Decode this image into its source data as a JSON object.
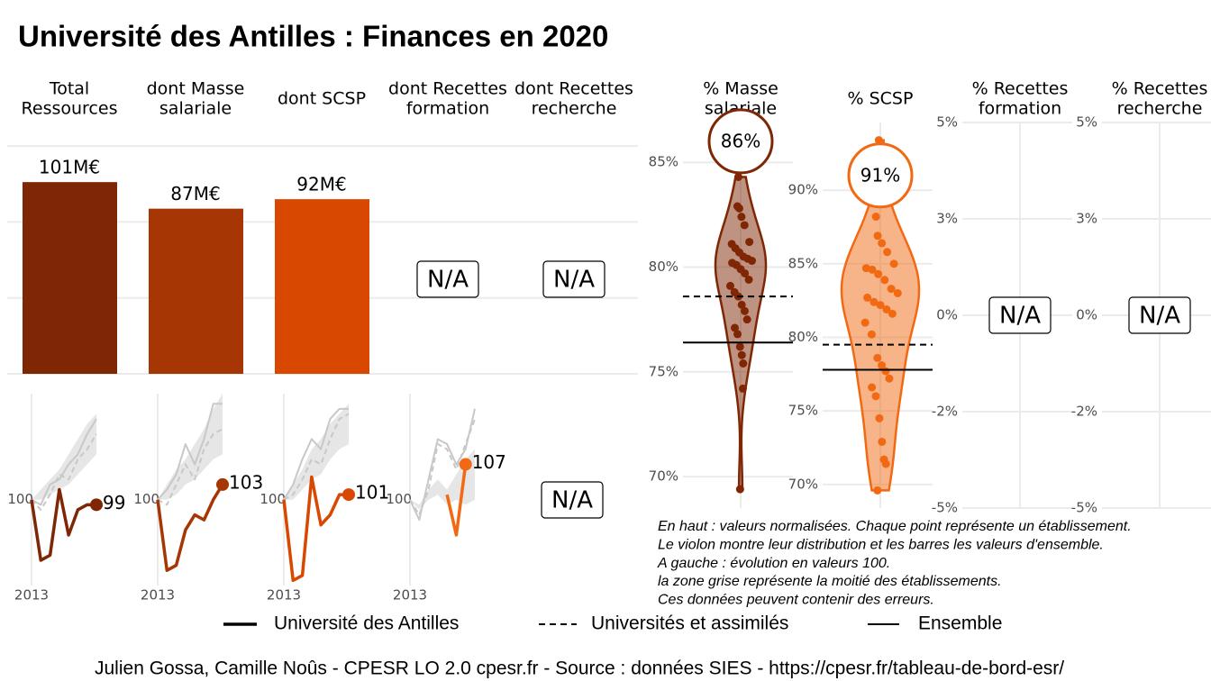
{
  "title": "Université des Antilles  :  Finances en 2020",
  "chart_data": [
    {
      "type": "bar",
      "categories": [
        [
          "Total",
          "Ressources"
        ],
        [
          "dont Masse",
          "salariale"
        ],
        [
          "dont SCSP"
        ],
        [
          "dont Recettes",
          "formation"
        ],
        [
          "dont Recettes",
          "recherche"
        ]
      ],
      "values": [
        101,
        87,
        92,
        null,
        null
      ],
      "value_labels": [
        "101M€",
        "87M€",
        "92M€",
        "N/A",
        "N/A"
      ],
      "colors": [
        "#7f2704",
        "#a63603",
        "#d94801",
        "#f16913",
        "#fd8d3c"
      ],
      "ylim": [
        0,
        121
      ],
      "yticks": [
        0,
        40,
        80,
        120
      ],
      "grid": true
    },
    {
      "type": "line",
      "x": [
        2013,
        2014,
        2015,
        2016,
        2017,
        2018,
        2019,
        2020
      ],
      "xlim": [
        2013,
        2020
      ],
      "xticks": [
        2013
      ],
      "ylim": [
        83,
        121
      ],
      "yticks": [
        100
      ],
      "band": {
        "low": [
          100,
          100,
          101,
          102,
          103,
          105,
          107,
          109
        ],
        "high": [
          100,
          102,
          104,
          106,
          109,
          112,
          115,
          117
        ],
        "color": "#e6e6e6"
      },
      "series": [
        {
          "color": "#c8c8c8",
          "width": 2,
          "dash": false,
          "values": [
            100,
            99,
            103,
            104,
            107,
            109,
            113,
            116
          ]
        },
        {
          "color": "#c8c8c8",
          "width": 2,
          "dash": true,
          "values": [
            100,
            98,
            101,
            105,
            104,
            108,
            110,
            113
          ]
        },
        {
          "color": "#7f2704",
          "width": 3.5,
          "dash": false,
          "marker": true,
          "values": [
            100,
            88,
            89,
            102,
            93,
            98,
            99,
            99
          ]
        }
      ]
    },
    {
      "type": "line",
      "x": [
        2013,
        2014,
        2015,
        2016,
        2017,
        2018,
        2019,
        2020
      ],
      "xlim": [
        2013,
        2020
      ],
      "xticks": [
        2013
      ],
      "ylim": [
        83,
        121
      ],
      "yticks": [
        100
      ],
      "band": {
        "low": [
          100,
          100,
          101,
          103,
          104,
          106,
          108,
          109
        ],
        "high": [
          100,
          103,
          106,
          108,
          111,
          114,
          118,
          121
        ],
        "color": "#e6e6e6"
      },
      "series": [
        {
          "color": "#c8c8c8",
          "width": 2,
          "dash": false,
          "values": [
            100,
            102,
            105,
            111,
            107,
            112,
            119,
            119
          ]
        },
        {
          "color": "#c8c8c8",
          "width": 2,
          "dash": true,
          "values": [
            100,
            99,
            103,
            107,
            104,
            110,
            113,
            114
          ]
        },
        {
          "color": "#a63603",
          "width": 3.5,
          "dash": false,
          "marker": true,
          "values": [
            100,
            86,
            87,
            94,
            97,
            96,
            100,
            103
          ]
        }
      ]
    },
    {
      "type": "line",
      "x": [
        2013,
        2014,
        2015,
        2016,
        2017,
        2018,
        2019,
        2020
      ],
      "xlim": [
        2013,
        2020
      ],
      "xticks": [
        2013
      ],
      "ylim": [
        83,
        121
      ],
      "yticks": [
        100
      ],
      "band": {
        "low": [
          100,
          100,
          102,
          104,
          105,
          108,
          110,
          111
        ],
        "high": [
          100,
          103,
          106,
          110,
          112,
          115,
          117,
          119
        ],
        "color": "#e6e6e6"
      },
      "series": [
        {
          "color": "#c8c8c8",
          "width": 2,
          "dash": false,
          "values": [
            100,
            103,
            108,
            112,
            110,
            116,
            118,
            118
          ]
        },
        {
          "color": "#c8c8c8",
          "width": 2,
          "dash": true,
          "values": [
            100,
            101,
            104,
            108,
            107,
            112,
            116,
            117
          ]
        },
        {
          "color": "#d94801",
          "width": 3.5,
          "dash": false,
          "marker": true,
          "values": [
            100,
            84,
            85,
            104.5,
            95,
            97,
            101,
            101
          ]
        }
      ]
    },
    {
      "type": "line",
      "x": [
        2013,
        2014,
        2015,
        2016,
        2017,
        2018,
        2019,
        2020
      ],
      "xlim": [
        2013,
        2020
      ],
      "xticks": [
        2013
      ],
      "ylim": [
        83,
        121
      ],
      "yticks": [
        100
      ],
      "band": {
        "low": [
          100,
          98,
          100,
          101,
          99,
          100,
          99,
          100
        ],
        "high": [
          100,
          99,
          102,
          104,
          102,
          105,
          108,
          110
        ],
        "color": "#e6e6e6"
      },
      "series": [
        {
          "color": "#c8c8c8",
          "width": 2,
          "dash": false,
          "values": [
            100,
            96,
            104,
            112,
            111,
            107,
            110,
            118
          ]
        },
        {
          "color": "#c8c8c8",
          "width": 2,
          "dash": true,
          "values": [
            100,
            97,
            102,
            111,
            110,
            106,
            111,
            116
          ]
        },
        {
          "color": "#f16913",
          "width": 3.5,
          "dash": false,
          "marker": true,
          "values": [
            null,
            null,
            null,
            null,
            101,
            93,
            107,
            null
          ]
        }
      ]
    },
    {
      "type": "line",
      "label": "N/A"
    },
    {
      "type": "violin",
      "title": [
        "% Masse",
        "salariale"
      ],
      "color": "#7f2704",
      "ylim": [
        68.5,
        86.9
      ],
      "yticks": [
        {
          "value": 70,
          "label": "70%"
        },
        {
          "value": 75,
          "label": "75%"
        },
        {
          "value": 80,
          "label": "80%"
        },
        {
          "value": 85,
          "label": "85%"
        }
      ],
      "points": [
        84.3,
        82.9,
        82.8,
        82.4,
        82.0,
        81.2,
        81.1,
        80.9,
        80.7,
        80.5,
        80.4,
        80.3,
        80.2,
        80.1,
        79.9,
        79.7,
        79.4,
        79.1,
        78.8,
        78.6,
        78.2,
        77.9,
        77.5,
        77.1,
        76.8,
        76.2,
        75.8,
        75.4,
        74.2,
        69.4
      ],
      "value": 86,
      "value_label": "86%",
      "reference_lines": [
        {
          "value": 78.6,
          "dash": true
        },
        {
          "value": 76.4,
          "dash": false
        }
      ]
    },
    {
      "type": "violin",
      "title": [
        "% SCSP"
      ],
      "color": "#f16913",
      "ylim": [
        68.4,
        94.6
      ],
      "yticks": [
        {
          "value": 70,
          "label": "70%"
        },
        {
          "value": 75,
          "label": "75%"
        },
        {
          "value": 80,
          "label": "80%"
        },
        {
          "value": 85,
          "label": "85%"
        },
        {
          "value": 90,
          "label": "90%"
        }
      ],
      "points": [
        93.4,
        88.2,
        86.9,
        86.4,
        85.8,
        85.0,
        84.7,
        84.6,
        84.3,
        83.9,
        83.3,
        83.0,
        82.7,
        82.4,
        82.2,
        81.9,
        81.6,
        81.0,
        80.2,
        78.6,
        78.1,
        77.7,
        77.2,
        76.6,
        76.0,
        74.5,
        72.9,
        71.7,
        71.4,
        69.6
      ],
      "value": 91,
      "value_label": "91%",
      "reference_lines": [
        {
          "value": 79.5,
          "dash": true
        },
        {
          "value": 77.8,
          "dash": false
        }
      ]
    },
    {
      "type": "violin",
      "title": [
        "% Recettes",
        "formation"
      ],
      "label": "N/A",
      "ylim": [
        -5,
        5
      ],
      "yticks": [
        {
          "value": -5,
          "label": "-5%"
        },
        {
          "value": -2.5,
          "label": "-2%"
        },
        {
          "value": 0,
          "label": "0%"
        },
        {
          "value": 2.5,
          "label": "3%"
        },
        {
          "value": 5,
          "label": "5%"
        }
      ]
    },
    {
      "type": "violin",
      "title": [
        "% Recettes",
        "recherche"
      ],
      "label": "N/A",
      "ylim": [
        -5,
        5
      ],
      "yticks": [
        {
          "value": -5,
          "label": "-5%"
        },
        {
          "value": -2.5,
          "label": "-2%"
        },
        {
          "value": 0,
          "label": "0%"
        },
        {
          "value": 2.5,
          "label": "3%"
        },
        {
          "value": 5,
          "label": "5%"
        }
      ]
    }
  ],
  "notes": [
    "En haut : valeurs normalisées. Chaque point représente un établissement.",
    "Le violon montre leur distribution et les barres les valeurs d'ensemble.",
    "A gauche : évolution en valeurs 100.",
    "la zone grise représente la moitié des établissements.",
    "Ces données peuvent contenir des erreurs."
  ],
  "legend": [
    {
      "name": "Université des Antilles",
      "width": 3.5,
      "dash": false
    },
    {
      "name": "Universités et assimilés",
      "width": 2,
      "dash": true
    },
    {
      "name": "Ensemble",
      "width": 2,
      "dash": false
    }
  ],
  "footer": "Julien Gossa, Camille Noûs - CPESR LO 2.0 cpesr.fr - Source : données SIES - https://cpesr.fr/tableau-de-bord-esr/"
}
